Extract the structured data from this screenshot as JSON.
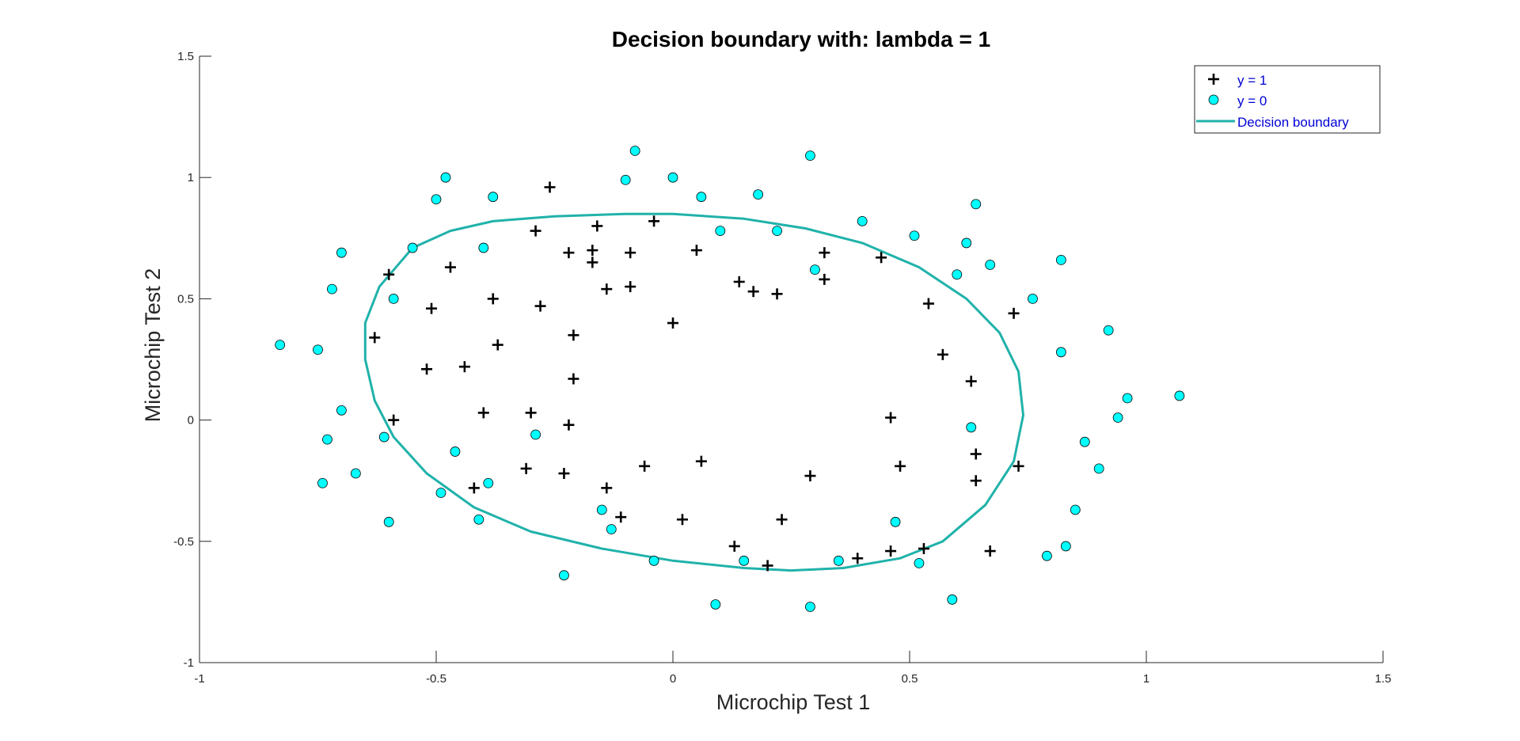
{
  "chart_data": {
    "type": "scatter",
    "title": "Decision boundary with: lambda = 1",
    "xlabel": "Microchip Test 1",
    "ylabel": "Microchip Test 2",
    "xlim": [
      -1,
      1.5
    ],
    "ylim": [
      -1,
      1.5
    ],
    "xticks": [
      -1,
      -0.5,
      0,
      0.5,
      1,
      1.5
    ],
    "yticks": [
      -1,
      -0.5,
      0,
      0.5,
      1,
      1.5
    ],
    "xtick_labels": [
      "-1",
      "-0.5",
      "0",
      "0.5",
      "1",
      "1.5"
    ],
    "ytick_labels": [
      "-1",
      "-0.5",
      "0",
      "0.5",
      "1",
      "1.5"
    ],
    "grid": false,
    "legend_position": "top-right",
    "legend": [
      "y = 1",
      "y = 0",
      "Decision boundary"
    ],
    "series": [
      {
        "name": "y = 1",
        "marker": "plus",
        "color": "#000000",
        "points": [
          [
            -0.26,
            0.96
          ],
          [
            -0.29,
            0.78
          ],
          [
            -0.16,
            0.8
          ],
          [
            -0.04,
            0.82
          ],
          [
            -0.22,
            0.69
          ],
          [
            -0.17,
            0.7
          ],
          [
            -0.09,
            0.69
          ],
          [
            0.05,
            0.7
          ],
          [
            -0.47,
            0.63
          ],
          [
            -0.6,
            0.6
          ],
          [
            -0.17,
            0.65
          ],
          [
            -0.14,
            0.54
          ],
          [
            -0.09,
            0.55
          ],
          [
            0.14,
            0.57
          ],
          [
            0.17,
            0.53
          ],
          [
            0.22,
            0.52
          ],
          [
            0.32,
            0.69
          ],
          [
            0.32,
            0.58
          ],
          [
            0.44,
            0.67
          ],
          [
            -0.51,
            0.46
          ],
          [
            -0.38,
            0.5
          ],
          [
            -0.28,
            0.47
          ],
          [
            0.54,
            0.48
          ],
          [
            0.72,
            0.44
          ],
          [
            -0.63,
            0.34
          ],
          [
            -0.37,
            0.31
          ],
          [
            -0.21,
            0.35
          ],
          [
            0.0,
            0.4
          ],
          [
            0.57,
            0.27
          ],
          [
            -0.52,
            0.21
          ],
          [
            -0.44,
            0.22
          ],
          [
            -0.21,
            0.17
          ],
          [
            0.63,
            0.16
          ],
          [
            -0.59,
            0.0
          ],
          [
            -0.4,
            0.03
          ],
          [
            -0.3,
            0.03
          ],
          [
            -0.22,
            -0.02
          ],
          [
            0.46,
            0.01
          ],
          [
            0.64,
            -0.14
          ],
          [
            -0.31,
            -0.2
          ],
          [
            -0.23,
            -0.22
          ],
          [
            -0.06,
            -0.19
          ],
          [
            0.06,
            -0.17
          ],
          [
            0.29,
            -0.23
          ],
          [
            0.48,
            -0.19
          ],
          [
            0.73,
            -0.19
          ],
          [
            0.64,
            -0.25
          ],
          [
            -0.42,
            -0.28
          ],
          [
            -0.14,
            -0.28
          ],
          [
            -0.11,
            -0.4
          ],
          [
            0.02,
            -0.41
          ],
          [
            0.23,
            -0.41
          ],
          [
            0.13,
            -0.52
          ],
          [
            0.46,
            -0.54
          ],
          [
            0.53,
            -0.53
          ],
          [
            0.67,
            -0.54
          ],
          [
            0.39,
            -0.57
          ],
          [
            0.2,
            -0.6
          ]
        ]
      },
      {
        "name": "y = 0",
        "marker": "circle",
        "color": "#00ffff",
        "points": [
          [
            -0.08,
            1.11
          ],
          [
            0.29,
            1.09
          ],
          [
            -0.48,
            1.0
          ],
          [
            -0.1,
            0.99
          ],
          [
            0.0,
            1.0
          ],
          [
            -0.5,
            0.91
          ],
          [
            -0.38,
            0.92
          ],
          [
            0.06,
            0.92
          ],
          [
            0.18,
            0.93
          ],
          [
            0.64,
            0.89
          ],
          [
            0.4,
            0.82
          ],
          [
            0.1,
            0.78
          ],
          [
            0.22,
            0.78
          ],
          [
            0.51,
            0.76
          ],
          [
            0.62,
            0.73
          ],
          [
            -0.55,
            0.71
          ],
          [
            -0.4,
            0.71
          ],
          [
            -0.7,
            0.69
          ],
          [
            0.82,
            0.66
          ],
          [
            0.67,
            0.64
          ],
          [
            0.3,
            0.62
          ],
          [
            0.6,
            0.6
          ],
          [
            -0.72,
            0.54
          ],
          [
            -0.59,
            0.5
          ],
          [
            0.76,
            0.5
          ],
          [
            0.92,
            0.37
          ],
          [
            -0.83,
            0.31
          ],
          [
            -0.75,
            0.29
          ],
          [
            0.82,
            0.28
          ],
          [
            0.96,
            0.09
          ],
          [
            1.07,
            0.1
          ],
          [
            -0.7,
            0.04
          ],
          [
            0.94,
            0.01
          ],
          [
            0.63,
            -0.03
          ],
          [
            -0.29,
            -0.06
          ],
          [
            -0.61,
            -0.07
          ],
          [
            -0.73,
            -0.08
          ],
          [
            0.87,
            -0.09
          ],
          [
            -0.46,
            -0.13
          ],
          [
            0.9,
            -0.2
          ],
          [
            -0.67,
            -0.22
          ],
          [
            -0.74,
            -0.26
          ],
          [
            -0.39,
            -0.26
          ],
          [
            -0.49,
            -0.3
          ],
          [
            -0.15,
            -0.37
          ],
          [
            0.85,
            -0.37
          ],
          [
            -0.41,
            -0.41
          ],
          [
            -0.6,
            -0.42
          ],
          [
            0.47,
            -0.42
          ],
          [
            -0.13,
            -0.45
          ],
          [
            0.83,
            -0.52
          ],
          [
            0.79,
            -0.56
          ],
          [
            -0.04,
            -0.58
          ],
          [
            0.15,
            -0.58
          ],
          [
            0.35,
            -0.58
          ],
          [
            0.52,
            -0.59
          ],
          [
            -0.23,
            -0.64
          ],
          [
            0.59,
            -0.74
          ],
          [
            0.09,
            -0.76
          ],
          [
            0.29,
            -0.77
          ]
        ]
      },
      {
        "name": "Decision boundary",
        "type": "line",
        "color": "#20b2aa",
        "points": [
          [
            -0.55,
            0.71
          ],
          [
            -0.47,
            0.78
          ],
          [
            -0.38,
            0.82
          ],
          [
            -0.25,
            0.84
          ],
          [
            -0.1,
            0.85
          ],
          [
            0.0,
            0.85
          ],
          [
            0.15,
            0.83
          ],
          [
            0.28,
            0.79
          ],
          [
            0.4,
            0.73
          ],
          [
            0.52,
            0.63
          ],
          [
            0.62,
            0.5
          ],
          [
            0.69,
            0.36
          ],
          [
            0.73,
            0.2
          ],
          [
            0.74,
            0.02
          ],
          [
            0.72,
            -0.17
          ],
          [
            0.66,
            -0.35
          ],
          [
            0.57,
            -0.5
          ],
          [
            0.48,
            -0.57
          ],
          [
            0.36,
            -0.61
          ],
          [
            0.25,
            -0.62
          ],
          [
            0.15,
            -0.61
          ],
          [
            0.0,
            -0.58
          ],
          [
            -0.15,
            -0.53
          ],
          [
            -0.3,
            -0.46
          ],
          [
            -0.42,
            -0.36
          ],
          [
            -0.52,
            -0.22
          ],
          [
            -0.59,
            -0.07
          ],
          [
            -0.63,
            0.08
          ],
          [
            -0.65,
            0.25
          ],
          [
            -0.65,
            0.4
          ],
          [
            -0.62,
            0.55
          ],
          [
            -0.55,
            0.71
          ]
        ]
      }
    ]
  },
  "colors": {
    "axis": "#262626",
    "plus_marker": "#000000",
    "circle_fill": "#00ffff",
    "circle_edge": "#000000",
    "boundary_line": "#20b2aa",
    "legend_text": "#0000d6"
  }
}
